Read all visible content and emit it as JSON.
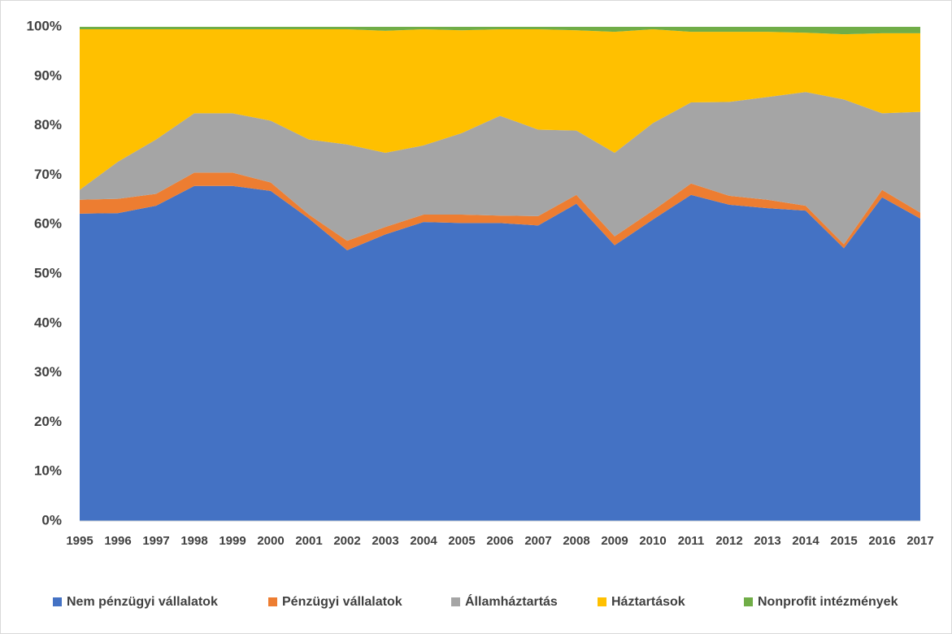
{
  "chart_data": {
    "type": "stacked_area",
    "x": [
      1995,
      1996,
      1997,
      1998,
      1999,
      2000,
      2001,
      2002,
      2003,
      2004,
      2005,
      2006,
      2007,
      2008,
      2009,
      2010,
      2011,
      2012,
      2013,
      2014,
      2015,
      2016,
      2017
    ],
    "ylim": [
      0,
      100
    ],
    "yticks": [
      {
        "value": 0,
        "label": "0%"
      },
      {
        "value": 10,
        "label": "10%"
      },
      {
        "value": 20,
        "label": "20%"
      },
      {
        "value": 30,
        "label": "30%"
      },
      {
        "value": 40,
        "label": "40%"
      },
      {
        "value": 50,
        "label": "50%"
      },
      {
        "value": 60,
        "label": "60%"
      },
      {
        "value": 70,
        "label": "70%"
      },
      {
        "value": 80,
        "label": "80%"
      },
      {
        "value": 90,
        "label": "90%"
      },
      {
        "value": 100,
        "label": "100%"
      }
    ],
    "legend": "bottom",
    "series": [
      {
        "name": "Nem pénzügyi vállalatok",
        "color": "#4472c4",
        "values": [
          62.2,
          62.3,
          63.8,
          67.8,
          67.8,
          66.8,
          61.2,
          54.8,
          58.0,
          60.5,
          60.3,
          60.3,
          59.8,
          64.2,
          55.8,
          61.0,
          66.0,
          64.0,
          63.3,
          62.8,
          55.2,
          65.5,
          61.2
        ]
      },
      {
        "name": "Pénzügyi vállalatok",
        "color": "#ed7d31",
        "values": [
          2.8,
          2.9,
          2.4,
          2.7,
          2.7,
          1.7,
          0.8,
          1.9,
          1.5,
          1.5,
          1.7,
          1.5,
          1.9,
          1.8,
          1.8,
          1.8,
          2.3,
          1.8,
          1.7,
          1.0,
          0.8,
          1.5,
          1.2
        ]
      },
      {
        "name": "Államháztartás",
        "color": "#a5a5a5",
        "values": [
          2.0,
          7.5,
          11.0,
          12.0,
          12.0,
          12.5,
          15.2,
          19.5,
          15.0,
          14.0,
          16.5,
          20.2,
          17.5,
          13.0,
          16.9,
          17.7,
          16.4,
          19.0,
          20.8,
          23.0,
          29.3,
          15.5,
          20.4
        ]
      },
      {
        "name": "Háztartások",
        "color": "#ffc000",
        "values": [
          32.5,
          26.8,
          22.3,
          17.0,
          17.0,
          18.5,
          22.3,
          23.3,
          24.7,
          23.5,
          20.8,
          17.5,
          20.3,
          20.3,
          24.5,
          19.0,
          14.3,
          14.2,
          13.2,
          12.0,
          13.2,
          16.2,
          15.9
        ]
      },
      {
        "name": "Nonprofit intézmények",
        "color": "#70ad47",
        "values": [
          0.5,
          0.5,
          0.5,
          0.5,
          0.5,
          0.5,
          0.5,
          0.5,
          0.8,
          0.5,
          0.7,
          0.5,
          0.5,
          0.7,
          1.0,
          0.5,
          1.0,
          1.0,
          1.0,
          1.2,
          1.5,
          1.3,
          1.3
        ]
      }
    ]
  }
}
